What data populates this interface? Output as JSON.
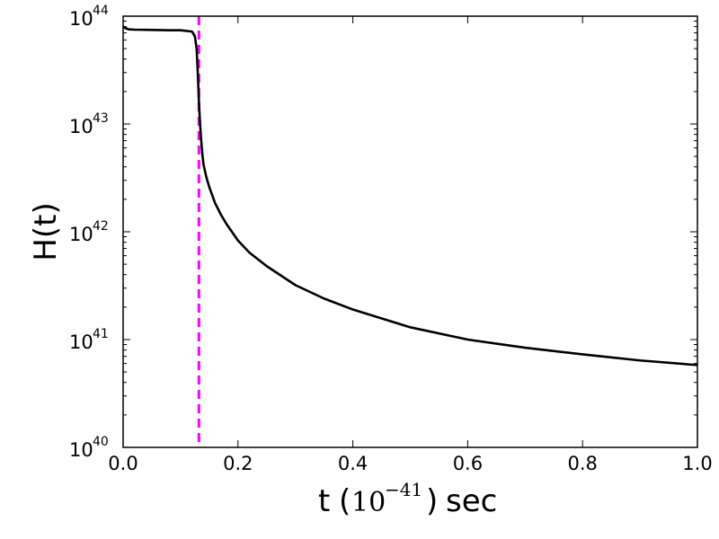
{
  "chart_data": {
    "type": "line",
    "xlabel": "t",
    "xlabel_unit_base": "10",
    "xlabel_unit_exponent": "−41",
    "xlabel_suffix": "sec",
    "ylabel": "H(t)",
    "xlim": [
      0.0,
      1.0
    ],
    "ylim": [
      1e+40,
      1e+44
    ],
    "yscale": "log",
    "grid": false,
    "x_ticks": [
      "0.0",
      "0.2",
      "0.4",
      "0.6",
      "0.8",
      "1.0"
    ],
    "x_tick_values": [
      0.0,
      0.2,
      0.4,
      0.6,
      0.8,
      1.0
    ],
    "y_ticks": [
      {
        "base": "10",
        "exp": "40",
        "value": 1e+40
      },
      {
        "base": "10",
        "exp": "41",
        "value": 1e+41
      },
      {
        "base": "10",
        "exp": "42",
        "value": 1e+42
      },
      {
        "base": "10",
        "exp": "43",
        "value": 1e+43
      },
      {
        "base": "10",
        "exp": "44",
        "value": 1e+44
      }
    ],
    "series": [
      {
        "color": "#000000",
        "style": "solid",
        "x": [
          0.0,
          0.005,
          0.01,
          0.02,
          0.05,
          0.08,
          0.1,
          0.12,
          0.125,
          0.128,
          0.13,
          0.132,
          0.134,
          0.136,
          0.138,
          0.14,
          0.145,
          0.15,
          0.16,
          0.17,
          0.18,
          0.2,
          0.22,
          0.25,
          0.3,
          0.35,
          0.4,
          0.5,
          0.6,
          0.7,
          0.8,
          0.9,
          1.0
        ],
        "y": [
          8e+43,
          7.7e+43,
          7.55e+43,
          7.5e+43,
          7.45e+43,
          7.4e+43,
          7.4e+43,
          7.2e+43,
          6.5e+43,
          5e+43,
          3e+43,
          1.6e+43,
          1e+43,
          7e+42,
          5.2e+42,
          4.2e+42,
          3.2e+42,
          2.6e+42,
          1.85e+42,
          1.45e+42,
          1.18e+42,
          8.3e+41,
          6.4e+41,
          4.8e+41,
          3.2e+41,
          2.4e+41,
          1.9e+41,
          1.3e+41,
          1e+41,
          8.4e+40,
          7.3e+40,
          6.4e+40,
          5.8e+40
        ]
      }
    ],
    "vlines": [
      {
        "x": 0.132,
        "color": "#ff00ff",
        "style": "dashed"
      }
    ]
  }
}
